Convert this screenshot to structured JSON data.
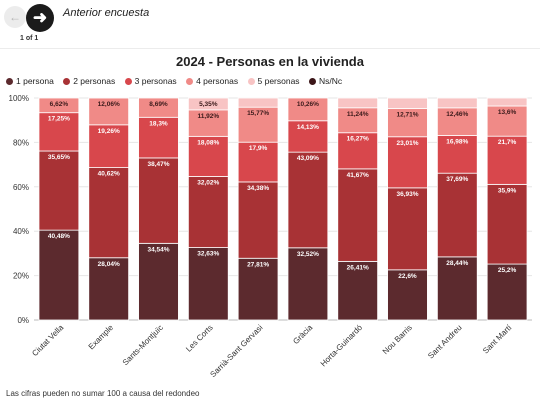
{
  "nav": {
    "prev_icon": "arrow-left-icon",
    "next_icon": "arrow-right-icon",
    "label": "Anterior encuesta",
    "page_counter": "1 of 1"
  },
  "footnote": "Las cifras pueden no sumar 100 a causa del redondeo",
  "chart_data": {
    "type": "bar",
    "stacked": true,
    "orientation": "vertical",
    "title": "2024 - Personas en la vivienda",
    "xlabel": "",
    "ylabel": "",
    "ylim": [
      0,
      100
    ],
    "y_ticks": [
      "0%",
      "20%",
      "40%",
      "60%",
      "80%",
      "100%"
    ],
    "grid": true,
    "legend_position": "top-left",
    "categories": [
      "Ciutat Vella",
      "Example",
      "Sants-Montjuïc",
      "Les Corts",
      "Sarrià-Sant Gervasi",
      "Gràcia",
      "Horta-Guinardó",
      "Nou Barris",
      "Sant Andreu",
      "Sant Martí"
    ],
    "series": [
      {
        "name": "1 persona",
        "color": "#5c2a2e",
        "values": [
          40.48,
          28.04,
          34.54,
          32.63,
          27.81,
          32.52,
          26.41,
          22.6,
          28.44,
          25.2
        ]
      },
      {
        "name": "2 personas",
        "color": "#a83235",
        "values": [
          35.65,
          40.62,
          38.47,
          32.02,
          34.38,
          43.09,
          41.67,
          36.93,
          37.69,
          35.9
        ]
      },
      {
        "name": "3 personas",
        "color": "#d8474c",
        "values": [
          17.25,
          19.26,
          18.3,
          18.08,
          17.9,
          14.13,
          16.27,
          23.01,
          16.98,
          21.7
        ]
      },
      {
        "name": "4 personas",
        "color": "#f08a87",
        "values": [
          6.62,
          12.06,
          8.69,
          11.92,
          15.77,
          10.26,
          11.24,
          12.71,
          12.46,
          13.6
        ]
      },
      {
        "name": "5 personas",
        "color": "#f8c4c4",
        "values": [
          0,
          0,
          0,
          5.35,
          4.14,
          0,
          4.41,
          4.75,
          4.43,
          3.6
        ]
      },
      {
        "name": "Ns/Nc",
        "color": "#3b1518",
        "values": [
          0,
          0,
          0,
          0,
          0,
          0,
          0,
          0,
          0,
          0
        ]
      }
    ],
    "labels": [
      [
        "40,48%",
        "35,65%",
        "17,25%",
        "6,62%",
        ""
      ],
      [
        "28,04%",
        "40,62%",
        "19,26%",
        "12,06%",
        ""
      ],
      [
        "34,54%",
        "38,47%",
        "18,3%",
        "8,69%",
        ""
      ],
      [
        "32,63%",
        "32,02%",
        "18,08%",
        "11,92%",
        "5,35%"
      ],
      [
        "27,81%",
        "34,38%",
        "17,9%",
        "15,77%",
        ""
      ],
      [
        "32,52%",
        "43,09%",
        "14,13%",
        "10,26%",
        ""
      ],
      [
        "26,41%",
        "41,67%",
        "16,27%",
        "11,24%",
        ""
      ],
      [
        "22,6%",
        "36,93%",
        "23,01%",
        "12,71%",
        ""
      ],
      [
        "28,44%",
        "37,69%",
        "16,98%",
        "12,46%",
        ""
      ],
      [
        "25,2%",
        "35,9%",
        "21,7%",
        "13,6%",
        ""
      ]
    ]
  }
}
